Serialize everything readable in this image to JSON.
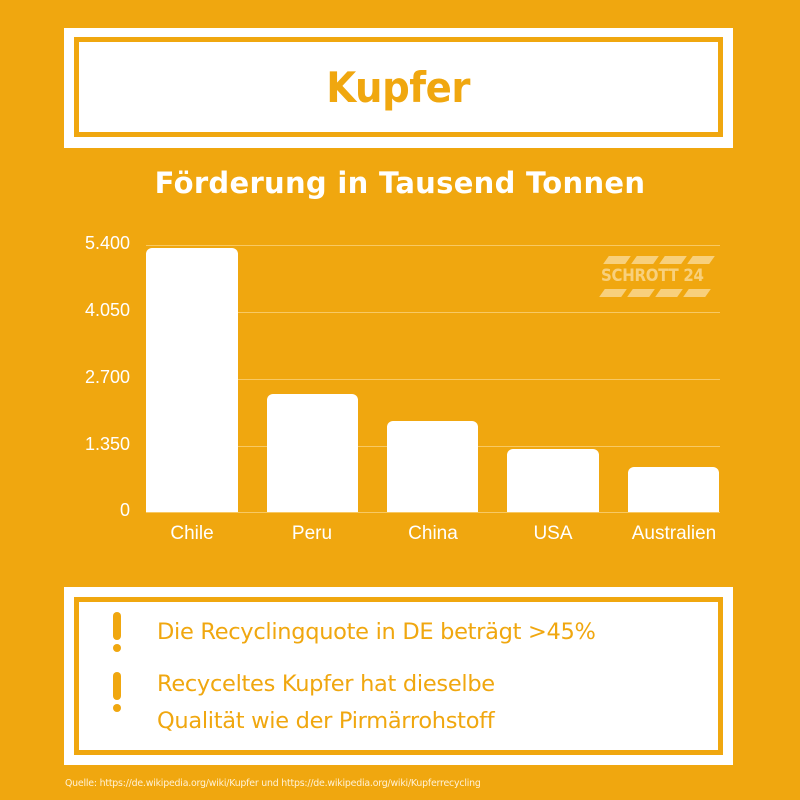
{
  "title": "Kupfer",
  "subtitle": "Förderung in Tausend Tonnen",
  "logo": {
    "text": "SCHROTT 24"
  },
  "colors": {
    "background": "#F0A70F",
    "bar": "#FFFFFF",
    "text_light": "#FFFFFF",
    "accent": "#F0A70F"
  },
  "chart_data": {
    "type": "bar",
    "title": "Förderung in Tausend Tonnen",
    "xlabel": "",
    "ylabel": "",
    "categories": [
      "Chile",
      "Peru",
      "China",
      "USA",
      "Australien"
    ],
    "values": [
      5340,
      2380,
      1850,
      1270,
      910
    ],
    "yticks": [
      "5.400",
      "4.050",
      "2.700",
      "1.350",
      "0"
    ],
    "ylim": [
      0,
      5400
    ],
    "grid": true,
    "legend": null
  },
  "notes": [
    {
      "icon": "exclamation-icon",
      "lines": [
        "Die Recyclingquote in DE beträgt >45%"
      ]
    },
    {
      "icon": "exclamation-icon",
      "lines": [
        "Recyceltes Kupfer hat dieselbe",
        "Qualität wie der Pirmärrohstoff"
      ]
    }
  ],
  "source": "Quelle: https://de.wikipedia.org/wiki/Kupfer und https://de.wikipedia.org/wiki/Kupferrecycling"
}
